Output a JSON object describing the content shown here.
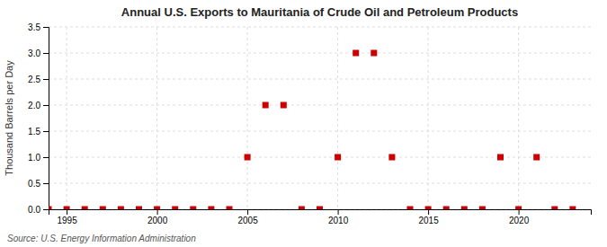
{
  "chart_data": {
    "type": "scatter",
    "title": "Annual U.S. Exports to Mauritania of Crude Oil and Petroleum Products",
    "ylabel": "Thousand Barrels per Day",
    "annotation": "Source: U.S. Energy Information Administration",
    "x": [
      1994,
      1995,
      1996,
      1997,
      1998,
      1999,
      2000,
      2001,
      2002,
      2003,
      2004,
      2005,
      2006,
      2007,
      2008,
      2009,
      2010,
      2011,
      2012,
      2013,
      2014,
      2015,
      2016,
      2017,
      2018,
      2019,
      2020,
      2021,
      2022,
      2023
    ],
    "values": [
      0.0,
      0.0,
      0.0,
      0.0,
      0.0,
      0.0,
      0.0,
      0.0,
      0.0,
      0.0,
      0.0,
      1.0,
      2.0,
      2.0,
      0.0,
      0.0,
      1.0,
      3.0,
      3.0,
      1.0,
      0.0,
      0.0,
      0.0,
      0.0,
      0.0,
      1.0,
      0.0,
      1.0,
      0.0,
      0.0
    ],
    "color": "#cc0000",
    "marker": "square",
    "xlim": [
      1994,
      2024
    ],
    "ylim": [
      0.0,
      3.5
    ],
    "xticks": [
      1995,
      2000,
      2005,
      2010,
      2015,
      2020
    ],
    "yticks": [
      {
        "value": 0,
        "label": "0.0"
      },
      0.5,
      {
        "value": 1,
        "label": "1.0"
      },
      1.5,
      {
        "value": 2,
        "label": "2.0"
      },
      2.5,
      {
        "value": 3,
        "label": "3.0"
      },
      3.5
    ],
    "grid": true
  }
}
